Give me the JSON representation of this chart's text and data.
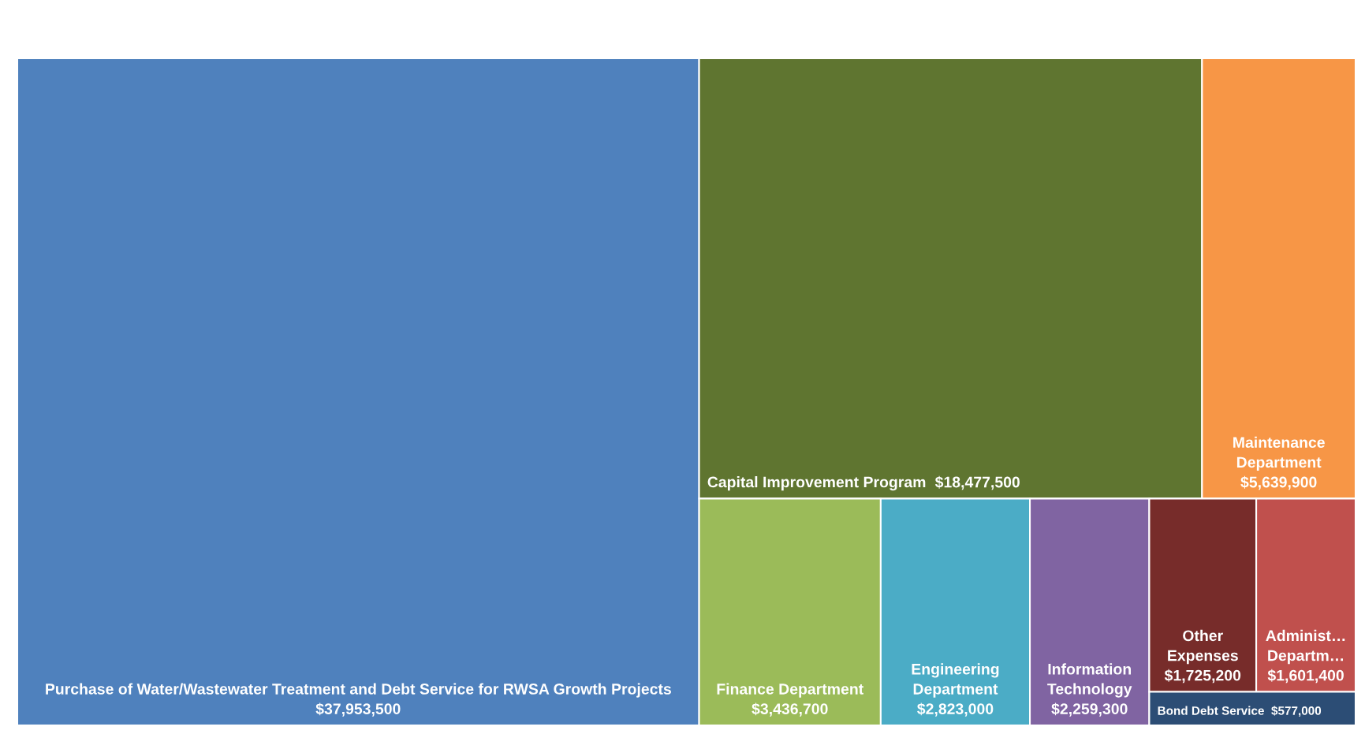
{
  "chart_data": {
    "type": "other",
    "categories": [
      "Purchase of Water/Wastewater Treatment and Debt Service for RWSA Growth Projects",
      "Capital Improvement Program",
      "Maintenance Department",
      "Finance Department",
      "Engineering Department",
      "Information Technology",
      "Other Expenses",
      "Administ… Departm…",
      "Bond Debt Service"
    ],
    "values": [
      37953500,
      18477500,
      5639900,
      3436700,
      2823000,
      2259300,
      1725200,
      1601400,
      577000
    ],
    "value_labels": [
      "$37,953,500",
      "$18,477,500",
      "$5,639,900",
      "$3,436,700",
      "$2,823,000",
      "$2,259,300",
      "$1,725,200",
      "$1,601,400",
      "$577,000"
    ],
    "colors": [
      "#4f81bd",
      "#5f7530",
      "#f79646",
      "#9bbb59",
      "#4bacc6",
      "#8064a2",
      "#772c2a",
      "#c0504d",
      "#2c4d75"
    ]
  }
}
